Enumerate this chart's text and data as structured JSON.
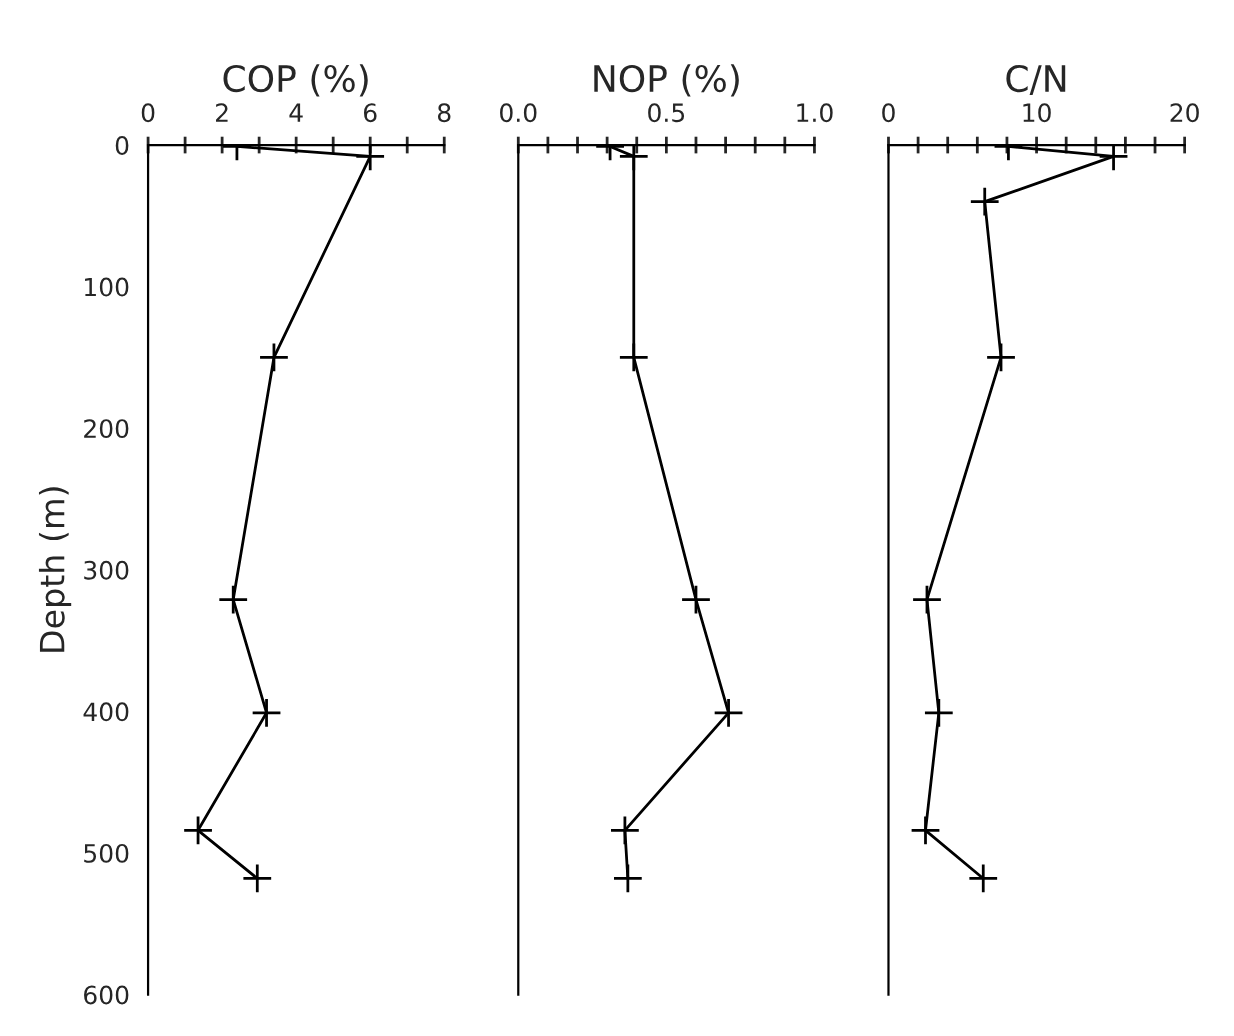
{
  "chart_data": [
    {
      "type": "line",
      "xlabel": "COP (%)",
      "ylabel": "Depth (m)",
      "marker": "cross",
      "line_style": "solid",
      "grid": false,
      "series": [
        {
          "color": "#000000",
          "x": [
            2.4,
            6.0,
            3.4,
            2.3,
            3.2,
            1.35,
            2.95
          ],
          "values": [
            1,
            8,
            150,
            321,
            401,
            484,
            518
          ]
        }
      ],
      "xlim": [
        0,
        8
      ],
      "xticks": [
        0,
        {
          "value": 1,
          "label": null
        },
        2,
        {
          "value": 3,
          "label": null
        },
        4,
        {
          "value": 5,
          "label": null
        },
        6,
        {
          "value": 7,
          "label": null
        },
        8
      ],
      "ylim": [
        600,
        0
      ],
      "yticks": [
        0,
        100,
        200,
        300,
        400,
        500,
        600
      ]
    },
    {
      "type": "line",
      "xlabel": "NOP (%)",
      "marker": "cross",
      "line_style": "solid",
      "grid": false,
      "tick_labels": "x",
      "series": [
        {
          "color": "#000000",
          "x": [
            0.31,
            0.39,
            0.39,
            0.6,
            0.71,
            0.36,
            0.37
          ],
          "values": [
            1,
            8,
            150,
            321,
            401,
            484,
            518
          ]
        }
      ],
      "xlim": [
        0,
        1
      ],
      "xticks": [
        {
          "value": 0,
          "label": "0.0"
        },
        {
          "value": 0.1,
          "label": null
        },
        {
          "value": 0.2,
          "label": null
        },
        {
          "value": 0.3,
          "label": null
        },
        {
          "value": 0.4,
          "label": null
        },
        {
          "value": 0.5,
          "label": "0.5"
        },
        {
          "value": 0.6,
          "label": null
        },
        {
          "value": 0.7,
          "label": null
        },
        {
          "value": 0.8,
          "label": null
        },
        {
          "value": 0.9,
          "label": null
        },
        {
          "value": 1,
          "label": "1.0"
        }
      ],
      "ylim": [
        600,
        0
      ],
      "yticks": [
        0,
        100,
        200,
        300,
        400,
        500,
        600
      ]
    },
    {
      "type": "line",
      "xlabel": "C/N",
      "marker": "cross",
      "line_style": "solid",
      "grid": false,
      "tick_labels": "x",
      "series": [
        {
          "color": "#000000",
          "x": [
            8.1,
            15.2,
            6.5,
            7.6,
            2.6,
            3.4,
            2.5,
            6.4
          ],
          "values": [
            1,
            8,
            40,
            150,
            321,
            401,
            484,
            518
          ]
        }
      ],
      "xlim": [
        0,
        20
      ],
      "xticks": [
        0,
        {
          "value": 2,
          "label": null
        },
        {
          "value": 4,
          "label": null
        },
        {
          "value": 6,
          "label": null
        },
        {
          "value": 8,
          "label": null
        },
        10,
        {
          "value": 12,
          "label": null
        },
        {
          "value": 14,
          "label": null
        },
        {
          "value": 16,
          "label": null
        },
        {
          "value": 18,
          "label": null
        },
        20
      ],
      "ylim": [
        600,
        0
      ],
      "yticks": [
        0,
        100,
        200,
        300,
        400,
        500,
        600
      ]
    }
  ]
}
